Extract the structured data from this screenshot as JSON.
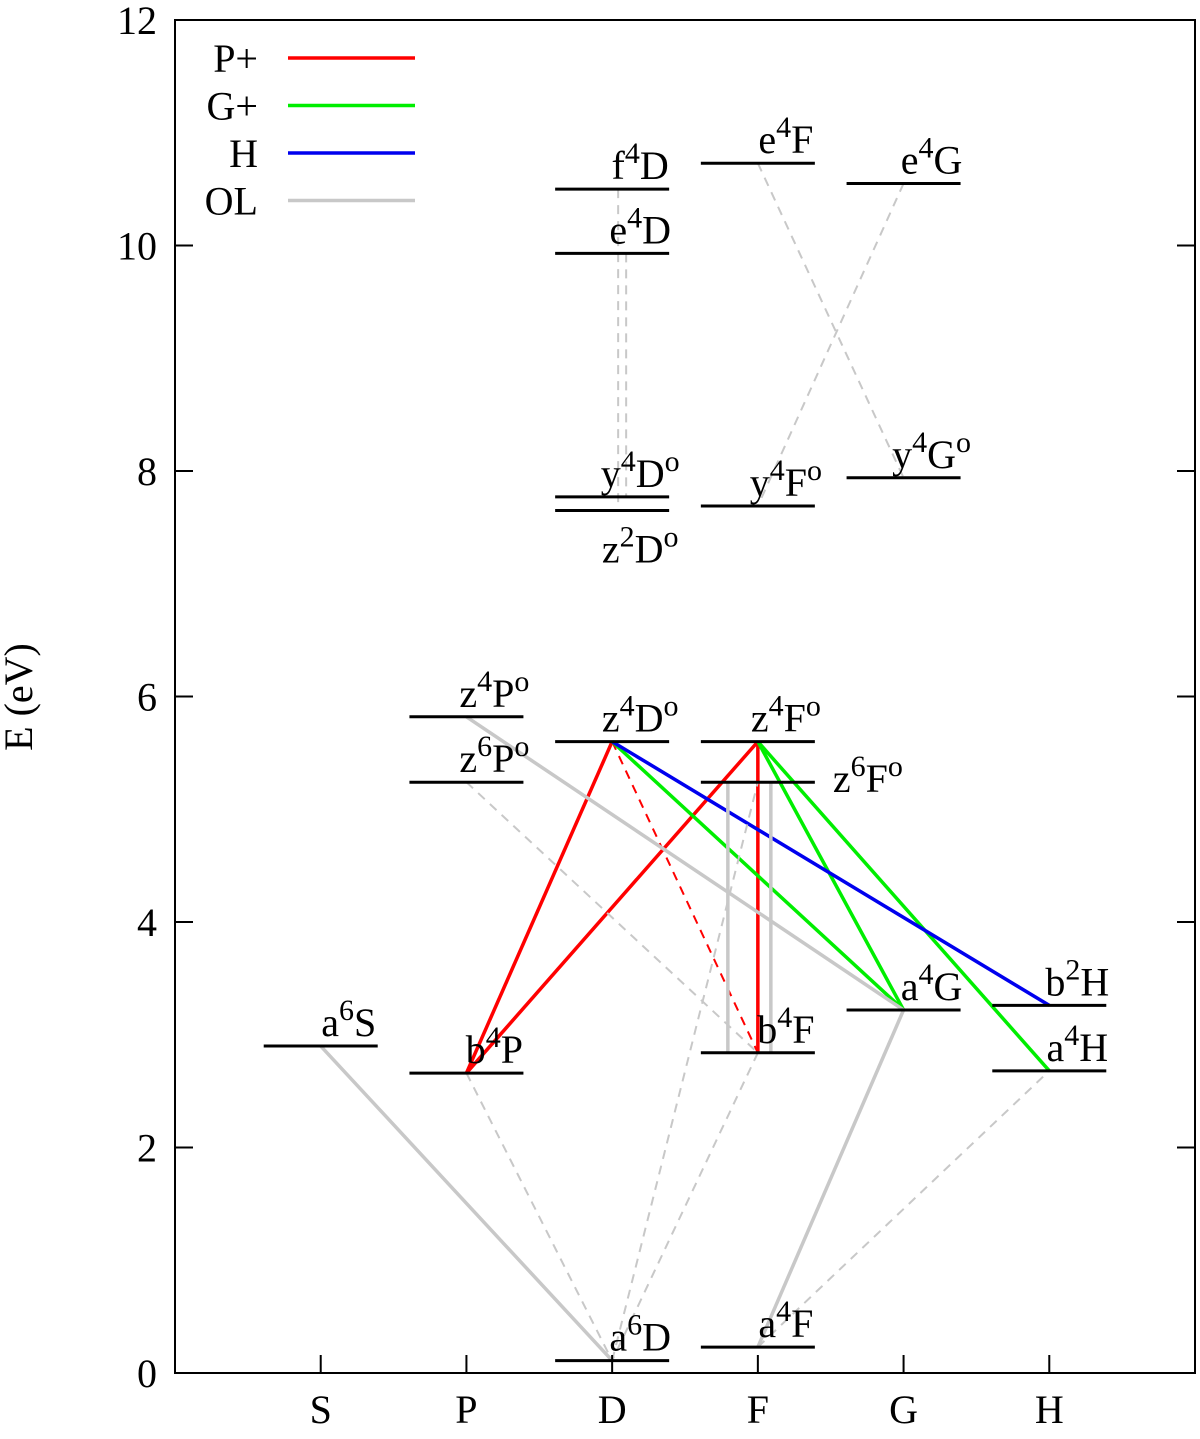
{
  "chart_data": {
    "type": "grotrian",
    "ylabel": "E (eV)",
    "categories": [
      "S",
      "P",
      "D",
      "F",
      "G",
      "H"
    ],
    "ylim": [
      0,
      12
    ],
    "yticks": [
      0,
      2,
      4,
      6,
      8,
      10,
      12
    ],
    "legend": "upper left",
    "levels": {
      "x": [
        "S",
        "P",
        "P",
        "P",
        "D",
        "D",
        "D",
        "D",
        "D",
        "D",
        "F",
        "F",
        "F",
        "F",
        "F",
        "F",
        "G",
        "G",
        "G",
        "H",
        "H"
      ],
      "values": [
        2.9,
        2.66,
        5.24,
        5.82,
        0.11,
        5.6,
        7.65,
        7.77,
        9.93,
        10.5,
        0.23,
        2.84,
        5.24,
        5.6,
        7.69,
        10.73,
        3.22,
        7.94,
        10.55,
        2.68,
        3.26
      ],
      "labels": [
        [
          "a",
          "6",
          "S"
        ],
        [
          "b",
          "4",
          "P"
        ],
        [
          "z",
          "6",
          "P",
          "o"
        ],
        [
          "z",
          "4",
          "P",
          "o"
        ],
        [
          "a",
          "6",
          "D"
        ],
        [
          "z",
          "4",
          "D",
          "o"
        ],
        [
          "z",
          "2",
          "D",
          "o"
        ],
        [
          "y",
          "4",
          "D",
          "o"
        ],
        [
          "e",
          "4",
          "D"
        ],
        [
          "f",
          "4",
          "D"
        ],
        [
          "a",
          "4",
          "F"
        ],
        [
          "b",
          "4",
          "F"
        ],
        [
          "z",
          "6",
          "F",
          "o"
        ],
        [
          "z",
          "4",
          "F",
          "o"
        ],
        [
          "y",
          "4",
          "F",
          "o"
        ],
        [
          "e",
          "4",
          "F"
        ],
        [
          "a",
          "4",
          "G"
        ],
        [
          "y",
          "4",
          "G",
          "o"
        ],
        [
          "e",
          "4",
          "G"
        ],
        [
          "a",
          "4",
          "H"
        ],
        [
          "b",
          "2",
          "H"
        ]
      ]
    },
    "series": [
      {
        "name": "P+",
        "color": "#ff0000",
        "lines": [
          {
            "x": [
              "P",
              "D"
            ],
            "values": [
              2.66,
              5.6
            ]
          },
          {
            "x": [
              "P",
              "F"
            ],
            "values": [
              2.66,
              5.6
            ]
          },
          {
            "x": [
              "F",
              "F"
            ],
            "values": [
              2.84,
              5.6
            ]
          },
          {
            "x": [
              "D",
              "F"
            ],
            "values": [
              5.6,
              2.84
            ],
            "dashed": true
          }
        ]
      },
      {
        "name": "G+",
        "color": "#00ee00",
        "lines": [
          {
            "x": [
              "D",
              "G"
            ],
            "values": [
              5.6,
              3.22
            ]
          },
          {
            "x": [
              "F",
              "G"
            ],
            "values": [
              5.6,
              3.22
            ]
          },
          {
            "x": [
              "F",
              "H"
            ],
            "values": [
              5.6,
              2.68
            ]
          }
        ]
      },
      {
        "name": "H",
        "color": "#0000ee",
        "lines": [
          {
            "x": [
              "D",
              "H"
            ],
            "values": [
              5.6,
              3.26
            ]
          }
        ]
      },
      {
        "name": "OL",
        "color": "#c8c8c8",
        "lines": [
          {
            "x": [
              "S",
              "D"
            ],
            "values": [
              2.9,
              0.11
            ]
          },
          {
            "x": [
              "P",
              "G"
            ],
            "values": [
              5.82,
              3.22
            ]
          },
          {
            "x": [
              "F",
              "G"
            ],
            "values": [
              0.23,
              3.22
            ]
          },
          {
            "x": [
              "F",
              "F"
            ],
            "values": [
              5.24,
              2.84
            ]
          },
          {
            "x": [
              "F",
              "F"
            ],
            "values": [
              5.24,
              2.84
            ]
          },
          {
            "x": [
              "D",
              "D"
            ],
            "values": [
              10.5,
              7.65
            ],
            "dashed": true
          },
          {
            "x": [
              "D",
              "D"
            ],
            "values": [
              9.93,
              7.77
            ],
            "dashed": true
          },
          {
            "x": [
              "F",
              "G"
            ],
            "values": [
              10.73,
              7.94
            ],
            "dashed": true
          },
          {
            "x": [
              "G",
              "F"
            ],
            "values": [
              10.55,
              7.69
            ],
            "dashed": true
          },
          {
            "x": [
              "P",
              "F"
            ],
            "values": [
              5.24,
              2.84
            ],
            "dashed": true
          },
          {
            "x": [
              "P",
              "D"
            ],
            "values": [
              2.66,
              0.11
            ],
            "dashed": true
          },
          {
            "x": [
              "D",
              "F"
            ],
            "values": [
              0.11,
              5.24
            ],
            "dashed": true
          },
          {
            "x": [
              "F",
              "H"
            ],
            "values": [
              0.23,
              2.68
            ],
            "dashed": true
          },
          {
            "x": [
              "F",
              "D"
            ],
            "values": [
              2.84,
              0.11
            ],
            "dashed": true
          }
        ]
      }
    ]
  }
}
